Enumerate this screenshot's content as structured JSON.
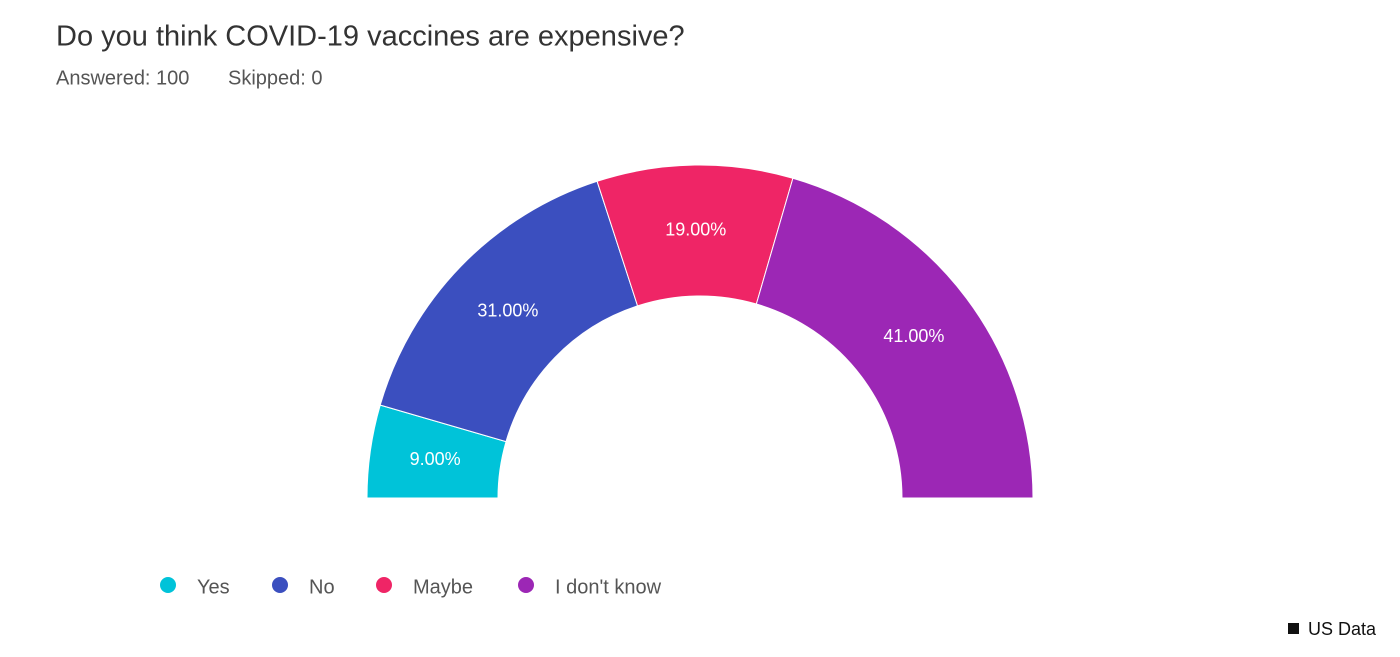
{
  "chart_data": {
    "type": "pie",
    "title": "Do you think COVID-19 vaccines are expensive?",
    "stats": [
      "Answered: 100",
      "Skipped: 0"
    ],
    "categories": [
      "Yes",
      "No",
      "Maybe",
      "I don't know"
    ],
    "values": [
      9,
      31,
      19,
      41
    ],
    "value_labels": [
      "9.00%",
      "31.00%",
      "19.00%",
      "41.00%"
    ],
    "colors": [
      "#00c3d9",
      "#3b4fbf",
      "#ef2566",
      "#9c27b5"
    ],
    "legend": "bottom-left",
    "footer": "US Data"
  }
}
